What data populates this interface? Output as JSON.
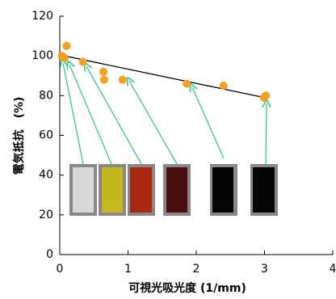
{
  "chart_data": {
    "type": "scatter",
    "x_label": "可視光吸光度 (1/mm)",
    "y_label": "電気抵抗　(%)",
    "x": [
      0.03,
      0.1,
      0.07,
      0.34,
      0.64,
      0.65,
      0.92,
      1.86,
      2.4,
      2.99,
      3.02
    ],
    "values": [
      100,
      105,
      99,
      97,
      92,
      88,
      88,
      86,
      85,
      79,
      80
    ],
    "color": "#f5a020",
    "trendline": {
      "x": [
        0,
        3
      ],
      "values": [
        100.5,
        79
      ],
      "color": "#000000"
    },
    "xlim": [
      0,
      4
    ],
    "xticks": [
      0,
      1,
      2,
      3,
      4
    ],
    "ylim": [
      0,
      120
    ],
    "yticks": [
      0,
      20,
      40,
      60,
      80,
      100,
      120
    ]
  }
}
